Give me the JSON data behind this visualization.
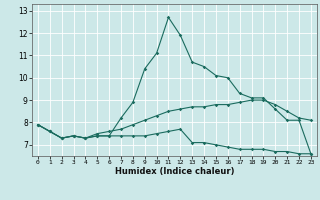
{
  "title": "",
  "xlabel": "Humidex (Indice chaleur)",
  "bg_color": "#cce8e8",
  "grid_color": "#ffffff",
  "line_color": "#1a6b5e",
  "xlim": [
    -0.5,
    23.5
  ],
  "ylim": [
    6.5,
    13.3
  ],
  "xticks": [
    0,
    1,
    2,
    3,
    4,
    5,
    6,
    7,
    8,
    9,
    10,
    11,
    12,
    13,
    14,
    15,
    16,
    17,
    18,
    19,
    20,
    21,
    22,
    23
  ],
  "yticks": [
    7,
    8,
    9,
    10,
    11,
    12,
    13
  ],
  "series": [
    {
      "x": [
        0,
        1,
        2,
        3,
        4,
        5,
        6,
        7,
        8,
        9,
        10,
        11,
        12,
        13,
        14,
        15,
        16,
        17,
        18,
        19,
        20,
        21,
        22,
        23
      ],
      "y": [
        7.9,
        7.6,
        7.3,
        7.4,
        7.3,
        7.4,
        7.4,
        8.2,
        8.9,
        10.4,
        11.1,
        12.7,
        11.9,
        10.7,
        10.5,
        10.1,
        10.0,
        9.3,
        9.1,
        9.1,
        8.6,
        8.1,
        8.1,
        6.6
      ]
    },
    {
      "x": [
        0,
        1,
        2,
        3,
        4,
        5,
        6,
        7,
        8,
        9,
        10,
        11,
        12,
        13,
        14,
        15,
        16,
        17,
        18,
        19,
        20,
        21,
        22,
        23
      ],
      "y": [
        7.9,
        7.6,
        7.3,
        7.4,
        7.3,
        7.4,
        7.4,
        7.4,
        7.4,
        7.4,
        7.5,
        7.6,
        7.7,
        7.1,
        7.1,
        7.0,
        6.9,
        6.8,
        6.8,
        6.8,
        6.7,
        6.7,
        6.6,
        6.6
      ]
    },
    {
      "x": [
        0,
        1,
        2,
        3,
        4,
        5,
        6,
        7,
        8,
        9,
        10,
        11,
        12,
        13,
        14,
        15,
        16,
        17,
        18,
        19,
        20,
        21,
        22,
        23
      ],
      "y": [
        7.9,
        7.6,
        7.3,
        7.4,
        7.3,
        7.5,
        7.6,
        7.7,
        7.9,
        8.1,
        8.3,
        8.5,
        8.6,
        8.7,
        8.7,
        8.8,
        8.8,
        8.9,
        9.0,
        9.0,
        8.8,
        8.5,
        8.2,
        8.1
      ]
    }
  ]
}
